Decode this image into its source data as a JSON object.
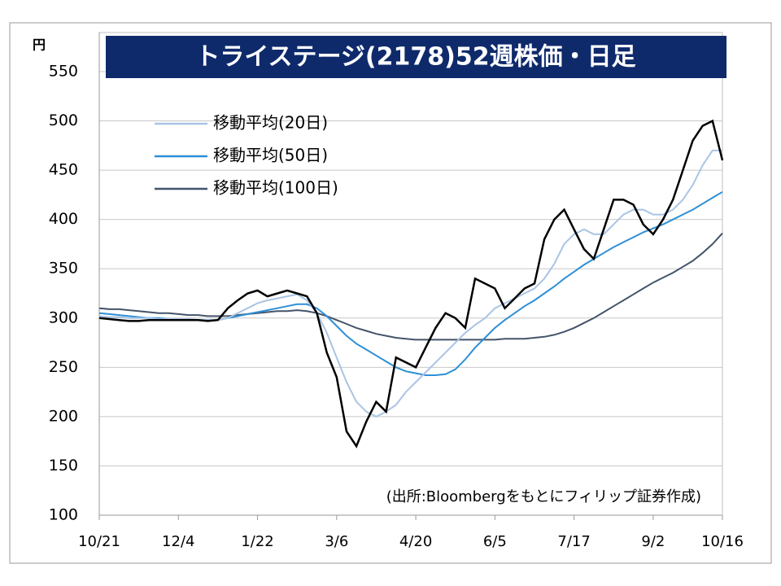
{
  "chart_data": {
    "type": "line",
    "title": "トライステージ(2178)52週株価・日足",
    "y_unit": "円",
    "annotation": "(出所:Bloombergをもとにフィリップ証券作成)",
    "categories": [
      "10/21",
      null,
      null,
      null,
      null,
      null,
      null,
      null,
      "12/4",
      null,
      null,
      null,
      null,
      null,
      null,
      null,
      "1/22",
      null,
      null,
      null,
      null,
      null,
      null,
      null,
      "3/6",
      null,
      null,
      null,
      null,
      null,
      null,
      null,
      "4/20",
      null,
      null,
      null,
      null,
      null,
      null,
      null,
      "6/5",
      null,
      null,
      null,
      null,
      null,
      null,
      null,
      "7/17",
      null,
      null,
      null,
      null,
      null,
      null,
      null,
      "9/2",
      null,
      null,
      null,
      null,
      null,
      null,
      "10/16"
    ],
    "series": [
      {
        "color": "#000000",
        "values": [
          300,
          299,
          298,
          297,
          297,
          298,
          298,
          298,
          298,
          298,
          298,
          297,
          298,
          310,
          318,
          325,
          328,
          322,
          325,
          328,
          325,
          322,
          305,
          265,
          240,
          185,
          170,
          195,
          215,
          205,
          260,
          255,
          250,
          270,
          290,
          305,
          300,
          290,
          340,
          335,
          330,
          310,
          320,
          330,
          335,
          380,
          400,
          410,
          390,
          370,
          360,
          390,
          420,
          420,
          415,
          395,
          385,
          400,
          420,
          450,
          480,
          495,
          500,
          460
        ]
      },
      {
        "name": "移動平均(20日)",
        "color": "#a9c4e4",
        "values": [
          302,
          301,
          301,
          300,
          300,
          300,
          299,
          299,
          299,
          299,
          298,
          298,
          298,
          300,
          305,
          310,
          315,
          318,
          320,
          322,
          324,
          318,
          305,
          285,
          260,
          235,
          215,
          205,
          200,
          205,
          212,
          225,
          235,
          245,
          255,
          265,
          275,
          285,
          293,
          300,
          310,
          315,
          320,
          325,
          330,
          340,
          355,
          375,
          385,
          390,
          385,
          385,
          395,
          405,
          410,
          410,
          405,
          405,
          410,
          420,
          435,
          455,
          470,
          470
        ]
      },
      {
        "name": "移動平均(50日)",
        "color": "#2e8fd6",
        "values": [
          305,
          304,
          303,
          302,
          301,
          300,
          300,
          299,
          299,
          299,
          298,
          298,
          298,
          300,
          302,
          304,
          306,
          308,
          310,
          312,
          314,
          314,
          310,
          302,
          292,
          282,
          274,
          268,
          262,
          256,
          250,
          246,
          244,
          242,
          242,
          243,
          248,
          258,
          270,
          280,
          290,
          298,
          305,
          312,
          318,
          325,
          332,
          340,
          347,
          354,
          360,
          366,
          372,
          377,
          382,
          387,
          391,
          395,
          400,
          405,
          410,
          416,
          422,
          428
        ]
      },
      {
        "name": "移動平均(100日)",
        "color": "#44546a",
        "values": [
          310,
          309,
          309,
          308,
          307,
          306,
          305,
          305,
          304,
          303,
          303,
          302,
          302,
          302,
          303,
          304,
          305,
          306,
          307,
          307,
          308,
          307,
          305,
          302,
          298,
          294,
          290,
          287,
          284,
          282,
          280,
          279,
          278,
          278,
          278,
          278,
          278,
          278,
          278,
          278,
          278,
          279,
          279,
          279,
          280,
          281,
          283,
          286,
          290,
          295,
          300,
          306,
          312,
          318,
          324,
          330,
          336,
          341,
          346,
          352,
          358,
          366,
          375,
          386
        ]
      }
    ],
    "ylim": [
      100,
      550
    ],
    "yticks": [
      100,
      150,
      200,
      250,
      300,
      350,
      400,
      450,
      500,
      550
    ],
    "grid": true,
    "legend": "upper left"
  }
}
